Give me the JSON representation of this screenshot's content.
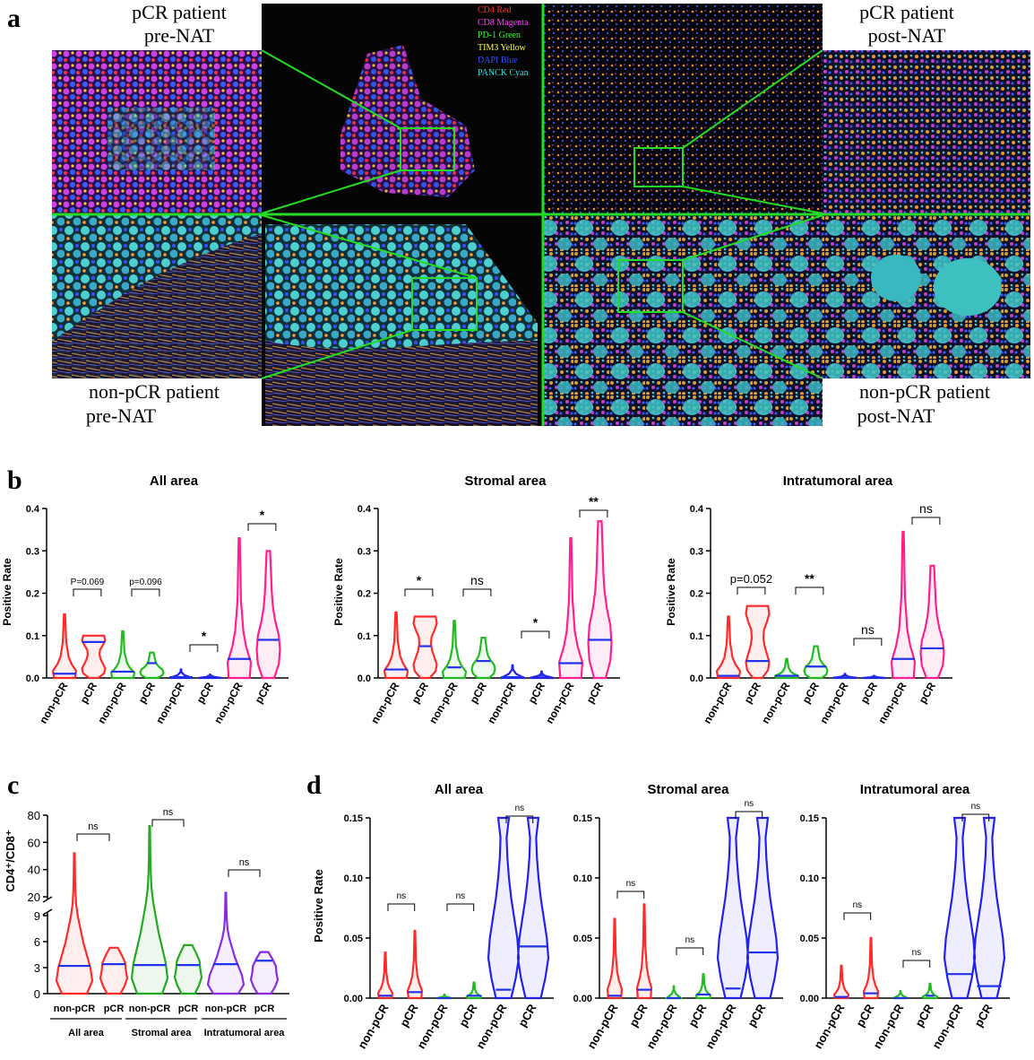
{
  "panel_a": {
    "letter": "a",
    "labels": {
      "tl1": "pCR patient",
      "tl2": "pre-NAT",
      "tr1": "pCR patient",
      "tr2": "post-NAT",
      "bl1": "non-pCR patient",
      "bl2": "pre-NAT",
      "br1": "non-pCR patient",
      "br2": "post-NAT"
    },
    "legend": [
      {
        "text": "CD4 Red",
        "color": "#ff3030"
      },
      {
        "text": "CD8 Magenta",
        "color": "#ff40ff"
      },
      {
        "text": "PD-1 Green",
        "color": "#30ff30"
      },
      {
        "text": "TIM3 Yellow",
        "color": "#ffff30"
      },
      {
        "text": "DAPI Blue",
        "color": "#3050ff"
      },
      {
        "text": "PANCK Cyan",
        "color": "#30e0e0"
      }
    ]
  },
  "panel_b": {
    "letter": "b",
    "ylabel": "Positive Rate",
    "yticks": [
      "0.0",
      "0.1",
      "0.2",
      "0.3",
      "0.4"
    ],
    "categories": [
      "non-pCR",
      "pCR",
      "non-pCR",
      "pCR",
      "non-pCR",
      "pCR",
      "non-pCR",
      "pCR"
    ],
    "series_colors": [
      "#ff2a2a",
      "#22bb22",
      "#2222ee",
      "#ff1f8f"
    ],
    "subplots": [
      {
        "title": "All area",
        "annotations": [
          "P=0.069",
          "p=0.096",
          "*",
          "*"
        ],
        "medians": [
          0.01,
          0.085,
          0.015,
          0.035,
          0.002,
          0.005,
          0.045,
          0.09
        ]
      },
      {
        "title": "Stromal area",
        "annotations": [
          "*",
          "ns",
          "*",
          "**"
        ],
        "medians": [
          0.02,
          0.075,
          0.025,
          0.04,
          0.002,
          0.005,
          0.035,
          0.09
        ]
      },
      {
        "title": "Intratumoral area",
        "annotations": [
          "p=0.052",
          "**",
          "ns",
          "ns"
        ],
        "medians": [
          0.005,
          0.04,
          0.005,
          0.027,
          0.001,
          0.003,
          0.045,
          0.07
        ]
      }
    ]
  },
  "panel_c": {
    "letter": "c",
    "ylabel": "CD4⁺/CD8⁺",
    "yticks_upper": [
      "20",
      "40",
      "60",
      "80"
    ],
    "yticks_lower": [
      "0",
      "3",
      "6",
      "9"
    ],
    "groups": [
      {
        "label": "All area",
        "cats": [
          "non-pCR",
          "pCR"
        ],
        "color": "#ff2a2a",
        "ann": "ns",
        "medians": [
          3.2,
          3.4
        ]
      },
      {
        "label": "Stromal area",
        "cats": [
          "non-pCR",
          "pCR"
        ],
        "color": "#22aa22",
        "ann": "ns",
        "medians": [
          3.3,
          3.3
        ]
      },
      {
        "label": "Intratumoral area",
        "cats": [
          "non-pCR",
          "pCR"
        ],
        "color": "#8a2be2",
        "ann": "ns",
        "medians": [
          3.4,
          3.8
        ]
      }
    ]
  },
  "panel_d": {
    "letter": "d",
    "ylabel": "Positive Rate",
    "yticks": [
      "0.00",
      "0.05",
      "0.10",
      "0.15"
    ],
    "categories": [
      "non-pCR",
      "pCR",
      "non-pCR",
      "pCR",
      "non-pCR",
      "pCR"
    ],
    "series_colors": [
      "#ff2a2a",
      "#22bb22",
      "#2222ee"
    ],
    "subplots": [
      {
        "title": "All area",
        "annotations": [
          "ns",
          "ns",
          "ns"
        ],
        "medians": [
          0.002,
          0.005,
          0.0,
          0.002,
          0.007,
          0.043
        ]
      },
      {
        "title": "Stromal area",
        "annotations": [
          "ns",
          "ns",
          "ns"
        ],
        "medians": [
          0.002,
          0.007,
          0.0,
          0.003,
          0.008,
          0.038
        ]
      },
      {
        "title": "Intratumoral area",
        "annotations": [
          "ns",
          "ns",
          "ns"
        ],
        "medians": [
          0.001,
          0.004,
          0.0,
          0.002,
          0.02,
          0.01
        ]
      }
    ]
  }
}
